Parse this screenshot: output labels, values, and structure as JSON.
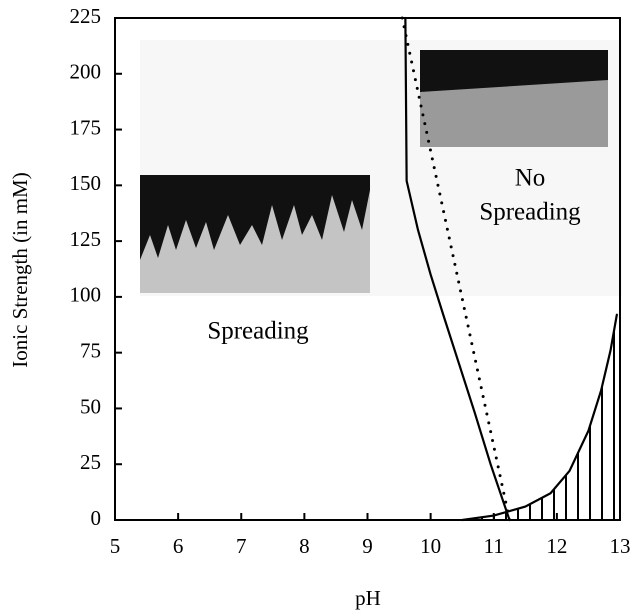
{
  "chart_data": {
    "type": "line",
    "xlabel": "pH",
    "ylabel": "Ionic Strength (in mM)",
    "xlim": [
      5,
      13
    ],
    "xticks": [
      5,
      6,
      7,
      8,
      9,
      10,
      11,
      12,
      13
    ],
    "ylim": [
      0,
      225
    ],
    "yticks": [
      0,
      25,
      50,
      75,
      100,
      125,
      150,
      175,
      200,
      225
    ],
    "grid": false,
    "series": [
      {
        "color": "#000000",
        "style": "solid",
        "fill": "none",
        "x": [
          9.6,
          9.62,
          9.8,
          10.0,
          10.2,
          10.45,
          10.7,
          10.95,
          11.25
        ],
        "values": [
          225,
          152,
          130,
          110,
          92,
          70,
          48,
          25,
          0
        ]
      },
      {
        "color": "#000000",
        "style": "dotted",
        "fill": "none",
        "x": [
          9.55,
          11.25
        ],
        "values": [
          225,
          0
        ]
      },
      {
        "color": "#000000",
        "style": "solid",
        "fill": "hatch",
        "x": [
          10.5,
          11.0,
          11.5,
          11.9,
          12.2,
          12.5,
          12.7,
          12.85,
          12.95
        ],
        "values": [
          0,
          2,
          6,
          12,
          22,
          40,
          58,
          76,
          92
        ]
      }
    ],
    "annotations": [
      {
        "lines": [
          "Spreading"
        ]
      },
      {
        "lines": [
          "No",
          "Spreading"
        ]
      }
    ]
  }
}
